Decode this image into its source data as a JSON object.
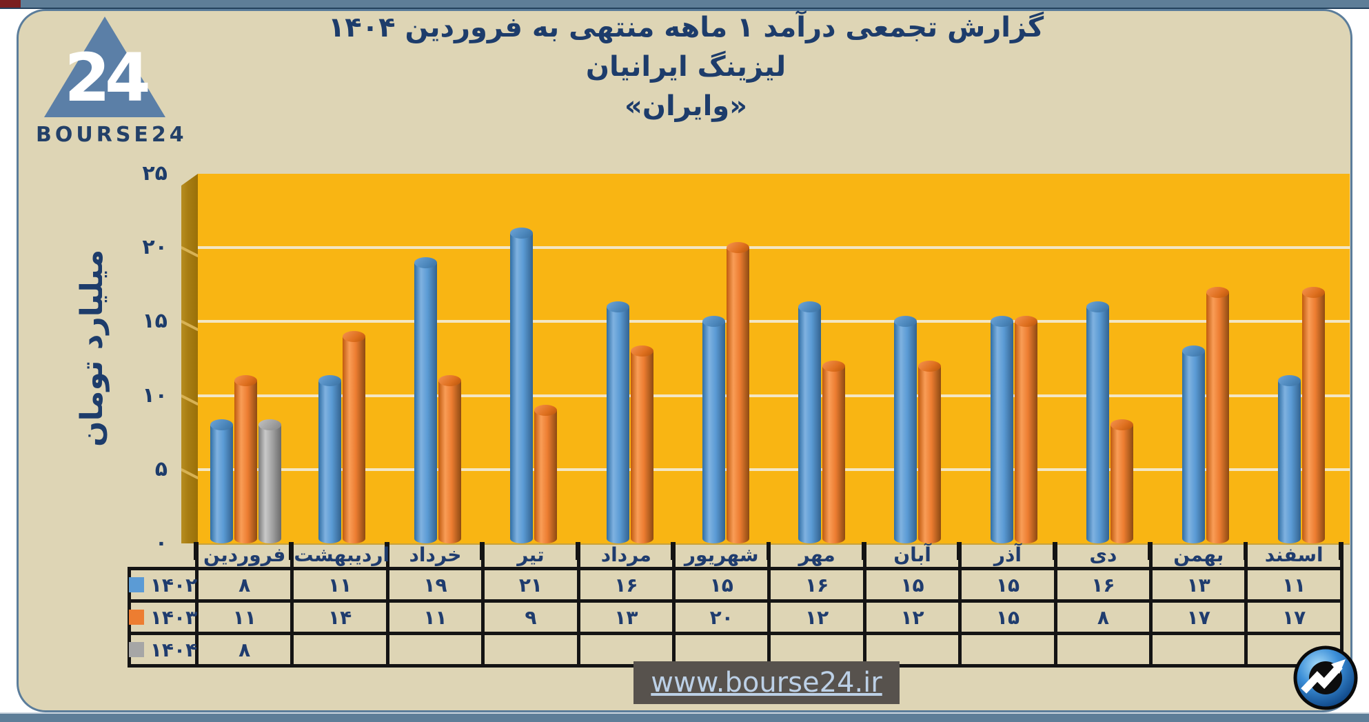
{
  "brand": {
    "logo_text": "BOURSE24",
    "logo_number": "24"
  },
  "title": {
    "line1": "گزارش تجمعی درآمد ۱ ماهه منتهی به فروردین ۱۴۰۴",
    "line2": "لیزینگ ایرانیان",
    "line3": "«وایران»"
  },
  "chart_data": {
    "type": "bar",
    "title": "گزارش تجمعی درآمد ۱ ماهه منتهی به فروردین ۱۴۰۴",
    "subtitle": "لیزینگ ایرانیان",
    "symbol": "«وایران»",
    "ylabel": "میلیارد تومان",
    "ylim": [
      0,
      25
    ],
    "ytick_values": [
      0,
      5,
      10,
      15,
      20,
      25
    ],
    "grid": true,
    "plot_bg": "#f9b513",
    "legend_position": "left-of-table-rows",
    "categories": [
      "فروردین",
      "اردیبهشت",
      "خرداد",
      "تیر",
      "مرداد",
      "شهریور",
      "مهر",
      "آبان",
      "آذر",
      "دی",
      "بهمن",
      "اسفند"
    ],
    "series": [
      {
        "name": "۱۴۰۲",
        "color": "#5b9bd5",
        "values": [
          8,
          11,
          19,
          21,
          16,
          15,
          16,
          15,
          15,
          16,
          13,
          11
        ]
      },
      {
        "name": "۱۴۰۳",
        "color": "#ed7d31",
        "values": [
          11,
          14,
          11,
          9,
          13,
          20,
          12,
          12,
          15,
          8,
          17,
          17
        ]
      },
      {
        "name": "۱۴۰۴",
        "color": "#a6a6a6",
        "values": [
          8,
          null,
          null,
          null,
          null,
          null,
          null,
          null,
          null,
          null,
          null,
          null
        ]
      }
    ]
  },
  "footer": {
    "url": "www.bourse24.ir"
  }
}
